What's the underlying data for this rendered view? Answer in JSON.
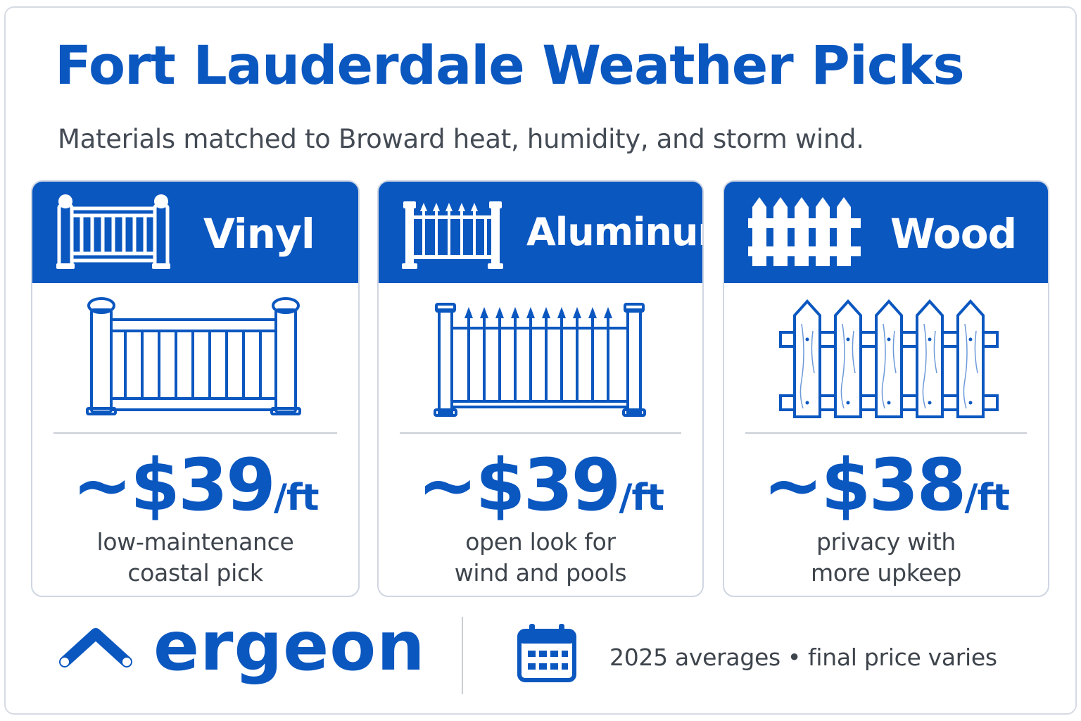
{
  "header": {
    "title": "Fort Lauderdale Weather Picks",
    "subtitle": "Materials matched to Broward heat, humidity, and storm wind."
  },
  "cards": [
    {
      "label": "Vinyl",
      "price": "~$39",
      "unit": "/ft",
      "desc_line1": "low-maintenance",
      "desc_line2": "coastal pick",
      "icon": "vinyl-fence-icon"
    },
    {
      "label": "Aluminum",
      "price": "~$39",
      "unit": "/ft",
      "desc_line1": "open look for",
      "desc_line2": "wind and pools",
      "icon": "aluminum-fence-icon"
    },
    {
      "label": "Wood",
      "price": "~$38",
      "unit": "/ft",
      "desc_line1": "privacy with",
      "desc_line2": "more upkeep",
      "icon": "wood-fence-icon"
    }
  ],
  "footer": {
    "brand": "ergeon",
    "note_left": "2025 averages",
    "separator": "•",
    "note_right": "final price varies",
    "icon": "calendar-icon"
  },
  "colors": {
    "accent": "#0b57c0",
    "text": "#3e444c",
    "border": "#cfd6e2"
  }
}
